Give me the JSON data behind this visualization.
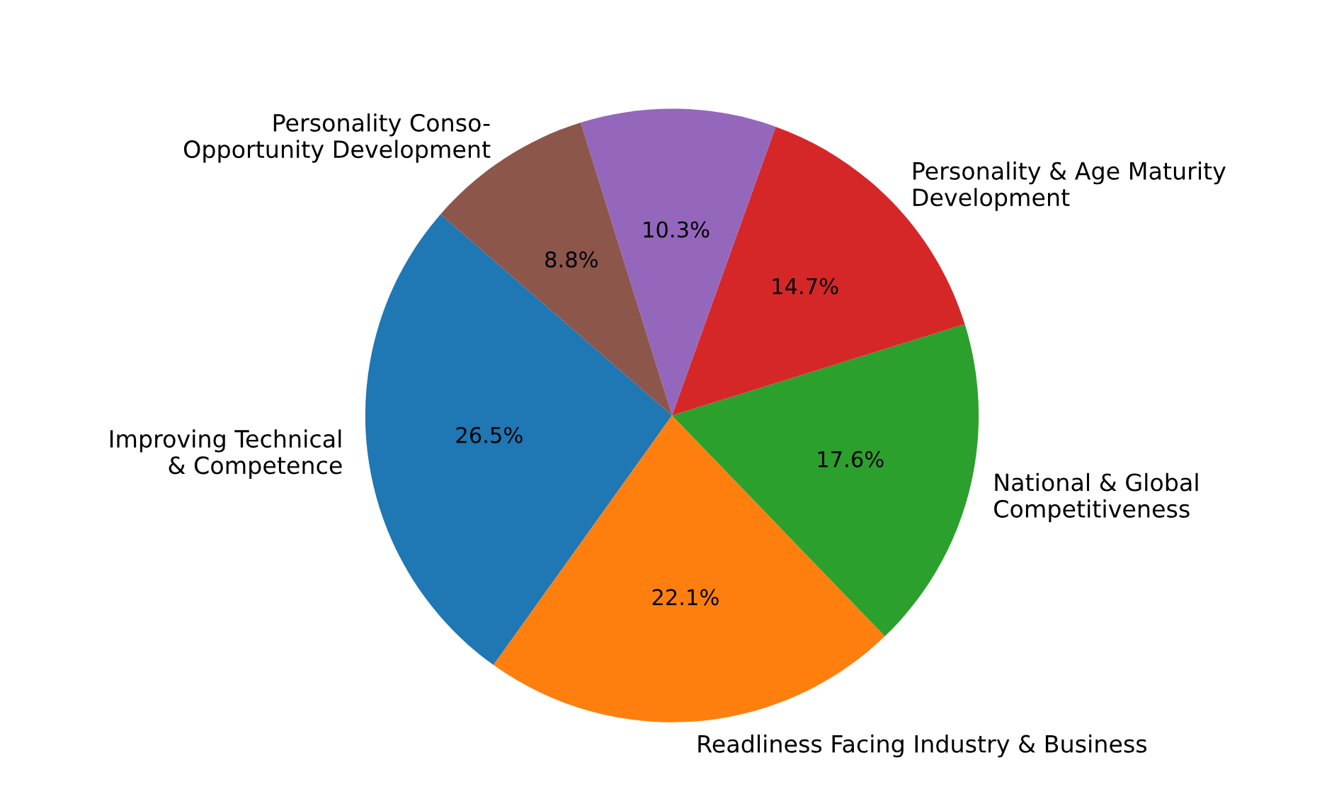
{
  "chart_data": {
    "type": "pie",
    "categories": [
      "Improving Technical\n& Competence",
      "Readliness Facing Industry & Business",
      "National & Global\nCompetitiveness",
      "Personality & Age Maturity\nDevelopment",
      null,
      "Personality Conso-\nOpportunity Development"
    ],
    "values": [
      26.5,
      22.1,
      17.6,
      14.7,
      10.3,
      8.8
    ],
    "colors": [
      "#1f77b4",
      "#ff7f0e",
      "#2ca02c",
      "#d62728",
      "#9467bd",
      "#8c564b"
    ],
    "value_labels": [
      "26.5%",
      "22.1%",
      "17.6%",
      "14.7%",
      "10.3%",
      "8.8%"
    ],
    "legend": false
  }
}
